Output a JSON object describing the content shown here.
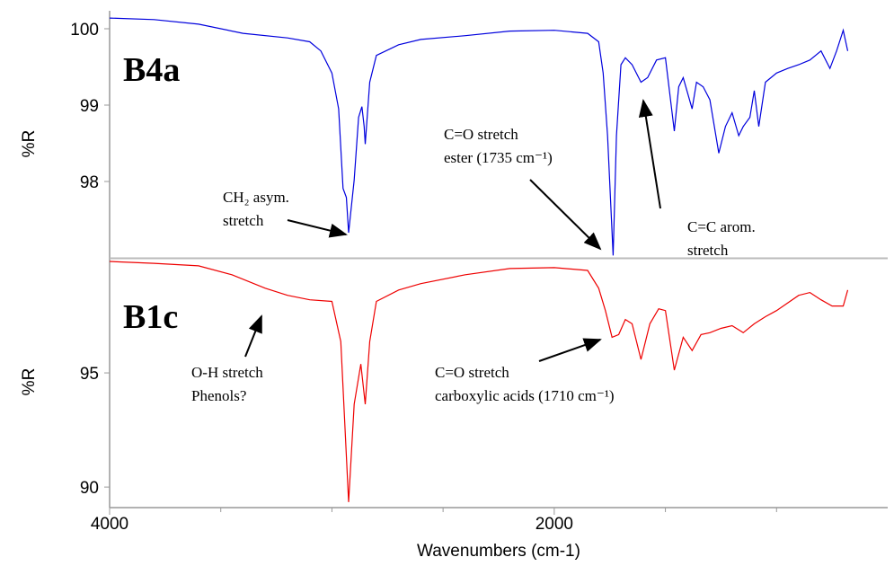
{
  "chart_data": [
    {
      "type": "line",
      "label": "B4a",
      "y_label": "%R",
      "xlim": [
        4000,
        500
      ],
      "xticks": [
        4000,
        2000
      ],
      "xminorticks": [
        3500,
        3000,
        2500,
        1500,
        1000
      ],
      "ylim": [
        97,
        100.2
      ],
      "yticks": [
        98,
        99,
        100
      ],
      "x": [
        4000,
        3800,
        3600,
        3400,
        3200,
        3100,
        3050,
        3000,
        2970,
        2950,
        2935,
        2925,
        2900,
        2880,
        2865,
        2855,
        2850,
        2830,
        2800,
        2700,
        2600,
        2400,
        2200,
        2000,
        1850,
        1800,
        1780,
        1760,
        1735,
        1720,
        1700,
        1680,
        1650,
        1610,
        1580,
        1540,
        1500,
        1460,
        1440,
        1420,
        1380,
        1360,
        1330,
        1300,
        1260,
        1230,
        1200,
        1170,
        1150,
        1120,
        1100,
        1080,
        1050,
        1000,
        950,
        900,
        850,
        800,
        760,
        730,
        700,
        680
      ],
      "series": [
        {
          "color": "#0000dd",
          "values": [
            100.14,
            100.12,
            100.06,
            99.94,
            99.88,
            99.83,
            99.71,
            99.42,
            98.95,
            97.91,
            97.79,
            97.33,
            98.02,
            98.84,
            98.98,
            98.72,
            98.49,
            99.3,
            99.65,
            99.79,
            99.86,
            99.91,
            99.97,
            99.98,
            99.94,
            99.83,
            99.42,
            98.6,
            97.03,
            98.6,
            99.53,
            99.62,
            99.53,
            99.3,
            99.36,
            99.59,
            99.62,
            98.66,
            99.24,
            99.36,
            98.95,
            99.3,
            99.24,
            99.07,
            98.37,
            98.72,
            98.9,
            98.6,
            98.72,
            98.84,
            99.19,
            98.72,
            99.3,
            99.42,
            99.48,
            99.53,
            99.59,
            99.71,
            99.48,
            99.71,
            99.98,
            99.71
          ]
        }
      ],
      "annotations": [
        {
          "lines": [
            "CH₂  asym.",
            "stretch"
          ]
        },
        {
          "lines": [
            "C=O stretch",
            "ester (1735 cm⁻¹)"
          ]
        },
        {
          "lines": [
            "C=C arom.",
            " stretch"
          ]
        }
      ]
    },
    {
      "type": "line",
      "label": "B1c",
      "y_label": "%R",
      "x_label": "Wavenumbers (cm-1)",
      "xlim": [
        4000,
        500
      ],
      "xticks": [
        4000,
        2000
      ],
      "xminorticks": [
        3500,
        3000,
        2500,
        1500,
        1000
      ],
      "ylim": [
        89.1,
        100
      ],
      "yticks": [
        90,
        95
      ],
      "x": [
        4000,
        3800,
        3600,
        3450,
        3300,
        3200,
        3100,
        3000,
        2960,
        2925,
        2900,
        2870,
        2850,
        2830,
        2800,
        2700,
        2600,
        2400,
        2200,
        2000,
        1850,
        1800,
        1770,
        1740,
        1710,
        1680,
        1650,
        1610,
        1570,
        1530,
        1500,
        1460,
        1420,
        1380,
        1340,
        1300,
        1250,
        1200,
        1150,
        1100,
        1050,
        1000,
        900,
        850,
        800,
        750,
        700,
        680
      ],
      "series": [
        {
          "color": "#ee0000",
          "values": [
            99.88,
            99.8,
            99.69,
            99.3,
            98.71,
            98.4,
            98.2,
            98.13,
            96.37,
            89.34,
            93.63,
            95.39,
            93.63,
            96.37,
            98.13,
            98.63,
            98.91,
            99.3,
            99.57,
            99.61,
            99.49,
            98.71,
            97.73,
            96.56,
            96.68,
            97.34,
            97.15,
            95.59,
            97.15,
            97.81,
            97.73,
            95.12,
            96.56,
            95.98,
            96.68,
            96.76,
            96.95,
            97.07,
            96.76,
            97.15,
            97.46,
            97.73,
            98.4,
            98.52,
            98.2,
            97.93,
            97.93,
            98.63
          ]
        }
      ],
      "annotations": [
        {
          "lines": [
            "O-H stretch",
            "Phenols?"
          ]
        },
        {
          "lines": [
            "C=O stretch",
            "carboxylic acids (1710 cm⁻¹)"
          ]
        }
      ]
    }
  ]
}
